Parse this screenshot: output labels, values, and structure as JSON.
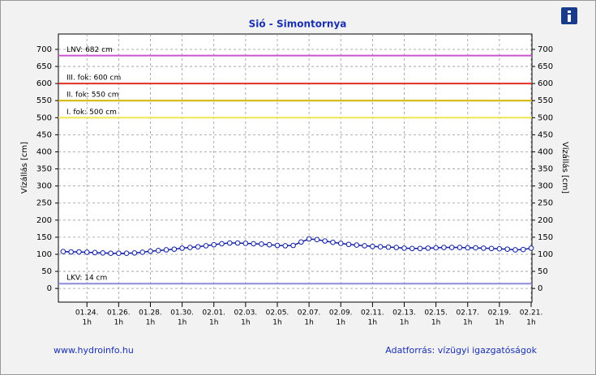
{
  "chart_data": {
    "type": "line",
    "title": "Sió - Simontornya",
    "y_label": "Vízállás [cm]",
    "y2_label": "Vízállás [cm]",
    "x_tick_time": "1h",
    "footer_left": "www.hydroinfo.hu",
    "footer_right": "Adatforrás: vízügyi igazgatóságok",
    "xlim": [
      -1.8,
      28.05
    ],
    "ylim": [
      -40,
      745
    ],
    "y2lim": [
      -40,
      745
    ],
    "xticks": [
      {
        "value": 0,
        "label": "01.24."
      },
      {
        "value": 2,
        "label": "01.26."
      },
      {
        "value": 4,
        "label": "01.28."
      },
      {
        "value": 6,
        "label": "01.30."
      },
      {
        "value": 8,
        "label": "02.01."
      },
      {
        "value": 10,
        "label": "02.03."
      },
      {
        "value": 12,
        "label": "02.05."
      },
      {
        "value": 14,
        "label": "02.07."
      },
      {
        "value": 16,
        "label": "02.09."
      },
      {
        "value": 18,
        "label": "02.11."
      },
      {
        "value": 20,
        "label": "02.13."
      },
      {
        "value": 22,
        "label": "02.15."
      },
      {
        "value": 24,
        "label": "02.17."
      },
      {
        "value": 26,
        "label": "02.19."
      },
      {
        "value": 28,
        "label": "02.21."
      }
    ],
    "yticks": [
      0,
      50,
      100,
      150,
      200,
      250,
      300,
      350,
      400,
      450,
      500,
      550,
      600,
      650,
      700
    ],
    "y2ticks": [
      0,
      50,
      100,
      150,
      200,
      250,
      300,
      350,
      400,
      450,
      500,
      550,
      600,
      650,
      700
    ],
    "grid": true,
    "reference_lines": [
      {
        "label": "LNV: 682 cm",
        "value": 682,
        "color": "#cc55cc"
      },
      {
        "label": "III. fok: 600 cm",
        "value": 600,
        "color": "#e03020"
      },
      {
        "label": "II. fok: 550 cm",
        "value": 550,
        "color": "#d4b400"
      },
      {
        "label": "I. fok: 500 cm",
        "value": 500,
        "color": "#f2e650"
      },
      {
        "label": "LKV: 14 cm",
        "value": 14,
        "color": "#8c8cd8"
      }
    ],
    "series": [
      {
        "color": "#1020a0",
        "x": [
          -1.5,
          -1,
          -0.5,
          0,
          0.5,
          1,
          1.5,
          2,
          2.5,
          3,
          3.5,
          4,
          4.5,
          5,
          5.5,
          6,
          6.5,
          7,
          7.5,
          8,
          8.5,
          9,
          9.5,
          10,
          10.5,
          11,
          11.5,
          12,
          12.5,
          13,
          13.5,
          14,
          14.5,
          15,
          15.5,
          16,
          16.5,
          17,
          17.5,
          18,
          18.5,
          19,
          19.5,
          20,
          20.5,
          21,
          21.5,
          22,
          22.5,
          23,
          23.5,
          24,
          24.5,
          25,
          25.5,
          26,
          26.5,
          27,
          27.5,
          28
        ],
        "values": [
          108,
          107,
          107,
          106,
          105,
          104,
          103,
          103,
          103,
          104,
          106,
          109,
          111,
          113,
          115,
          118,
          120,
          122,
          125,
          128,
          131,
          133,
          133,
          132,
          131,
          130,
          128,
          126,
          125,
          126,
          136,
          145,
          143,
          139,
          135,
          132,
          129,
          127,
          125,
          123,
          122,
          121,
          120,
          118,
          117,
          117,
          118,
          119,
          120,
          120,
          120,
          119,
          119,
          118,
          117,
          116,
          115,
          113,
          114,
          118
        ]
      }
    ]
  }
}
